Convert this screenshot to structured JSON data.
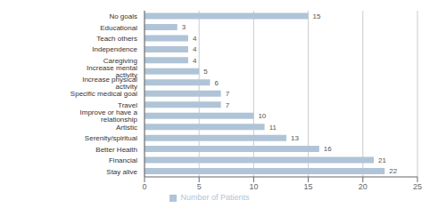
{
  "chart_data": {
    "type": "bar",
    "orientation": "horizontal",
    "categories": [
      "Stay alive",
      "Financial",
      "Better Health",
      "Serenity/spiritual",
      "Artistic",
      "Improve or have a relationship",
      "Travel",
      "Specific medical goal",
      "Increase  physical activity",
      "Increase mental activity",
      "Caregiving",
      "Independence",
      "Teach others",
      "Educational",
      "No goals"
    ],
    "series": [
      {
        "name": "Number of Patients",
        "color": "#b0c4d8",
        "values": [
          22,
          21,
          16,
          13,
          11,
          10,
          7,
          7,
          6,
          5,
          4,
          4,
          4,
          3,
          15
        ]
      }
    ],
    "xlim": [
      0,
      25
    ],
    "xticks": [
      0,
      5,
      10,
      15,
      20,
      25
    ],
    "grid": true,
    "data_labels": true,
    "legend": "bottom"
  }
}
